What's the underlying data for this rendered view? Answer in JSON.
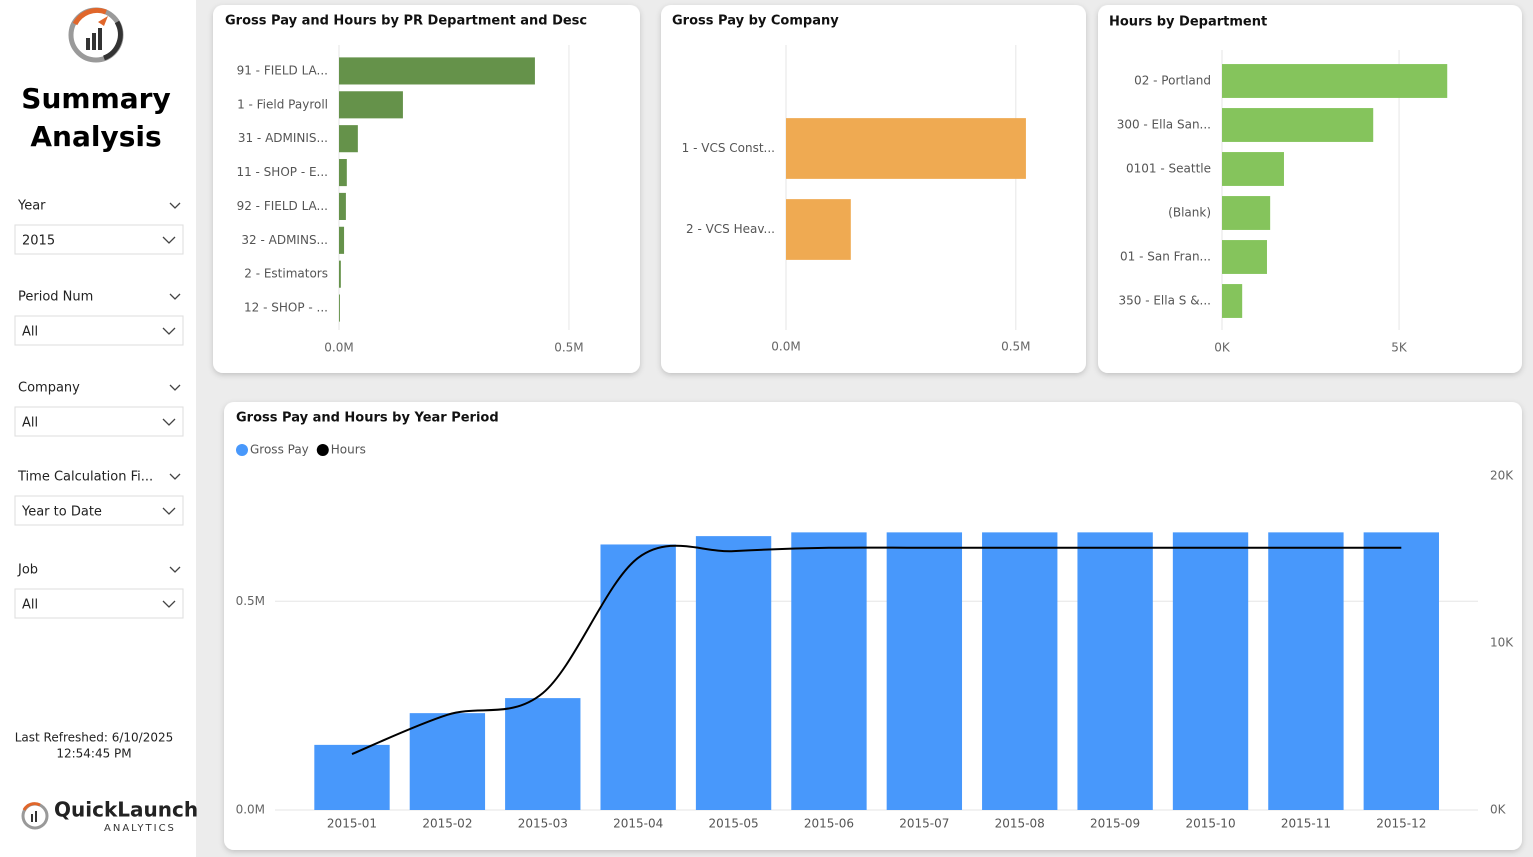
{
  "sidebar": {
    "title_line1": "Summary",
    "title_line2": "Analysis",
    "slicers": [
      {
        "label": "Year",
        "value": "2015"
      },
      {
        "label": "Period Num",
        "value": "All"
      },
      {
        "label": "Company",
        "value": "All"
      },
      {
        "label": "Time Calculation Fi...",
        "value": "Year to Date"
      },
      {
        "label": "Job",
        "value": "All"
      }
    ],
    "refreshed_line1": "Last Refreshed: 6/10/2025",
    "refreshed_line2": "12:54:45 PM",
    "brand": "QuickLaunch",
    "brand_sub": "ANALYTICS"
  },
  "chart_data": [
    {
      "type": "bar",
      "orientation": "horizontal",
      "title": "Gross Pay and Hours by PR Department and Desc",
      "categories": [
        "91 - FIELD LA...",
        "1 - Field Payroll",
        "31 - ADMINIS...",
        "11 - SHOP - E...",
        "92 - FIELD LA...",
        "32 - ADMINS...",
        "2 - Estimators",
        "12 - SHOP - ..."
      ],
      "values": [
        0.426,
        0.139,
        0.041,
        0.017,
        0.015,
        0.011,
        0.004,
        0.002
      ],
      "color": "#65924a",
      "xlim": [
        0,
        0.611
      ],
      "xticks": [
        {
          "value": 0,
          "label": "0.0M"
        },
        {
          "value": 0.5,
          "label": "0.5M"
        }
      ],
      "grid": true
    },
    {
      "type": "bar",
      "orientation": "horizontal",
      "title": "Gross Pay by Company",
      "categories": [
        "1 - VCS Const...",
        "2 - VCS Heav..."
      ],
      "values": [
        0.522,
        0.141
      ],
      "color": "#efaa52",
      "xlim": [
        0,
        0.607
      ],
      "xticks": [
        {
          "value": 0,
          "label": "0.0M"
        },
        {
          "value": 0.5,
          "label": "0.5M"
        }
      ],
      "grid": true
    },
    {
      "type": "bar",
      "orientation": "horizontal",
      "title": "Hours by Department",
      "categories": [
        "02 - Portland",
        "300 - Ella San...",
        "0101 - Seattle",
        "(Blank)",
        "01 - San Fran...",
        "350 - Ella S &..."
      ],
      "values": [
        6.36,
        4.27,
        1.75,
        1.36,
        1.27,
        0.57
      ],
      "color": "#85c45c",
      "xlim": [
        0,
        7.85
      ],
      "xticks": [
        {
          "value": 0,
          "label": "0K"
        },
        {
          "value": 5,
          "label": "5K"
        }
      ],
      "grid": true
    },
    {
      "type": "combo",
      "title": "Gross Pay and Hours by Year Period",
      "categories": [
        "2015-01",
        "2015-02",
        "2015-03",
        "2015-04",
        "2015-05",
        "2015-06",
        "2015-07",
        "2015-08",
        "2015-09",
        "2015-10",
        "2015-11",
        "2015-12"
      ],
      "series": [
        {
          "name": "Gross Pay",
          "type": "bar",
          "color": "#4898fb",
          "values": [
            0.156,
            0.232,
            0.268,
            0.636,
            0.656,
            0.665,
            0.665,
            0.665,
            0.665,
            0.665,
            0.665,
            0.665
          ]
        },
        {
          "name": "Hours",
          "type": "line",
          "color": "#000000",
          "axis": "y2",
          "values": [
            3.35,
            5.7,
            7.0,
            15.1,
            15.5,
            15.7,
            15.7,
            15.7,
            15.7,
            15.7,
            15.7,
            15.7
          ]
        }
      ],
      "ylim": [
        0,
        0.8
      ],
      "yticks": [
        {
          "value": 0,
          "label": "0.0M"
        },
        {
          "value": 0.5,
          "label": "0.5M"
        }
      ],
      "y2lim": [
        0,
        20
      ],
      "y2ticks": [
        {
          "value": 0,
          "label": "0K"
        },
        {
          "value": 10,
          "label": "10K"
        },
        {
          "value": 20,
          "label": "20K"
        }
      ],
      "grid": true,
      "legend": "top-left"
    }
  ]
}
